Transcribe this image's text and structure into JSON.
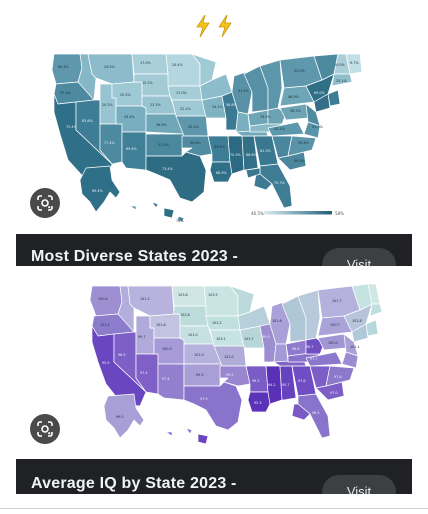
{
  "top_bar": {
    "icons": [
      "lightning-bolt-icon",
      "lightning-bolt-icon"
    ]
  },
  "results": [
    {
      "caption": "Most Diverse States 2023 -",
      "visit_label": "Visit",
      "legend": {
        "min": "46.5%",
        "max": "58%"
      }
    },
    {
      "caption": "Average IQ by State 2023 -",
      "visit_label": "Visit"
    }
  ],
  "icons": {
    "lens": "google-lens-icon"
  },
  "colors": {
    "caption_bg": "#202124",
    "caption_text": "#f1f3f4",
    "visit_bg": "#3c4043",
    "bolt": "#f5c518"
  }
}
